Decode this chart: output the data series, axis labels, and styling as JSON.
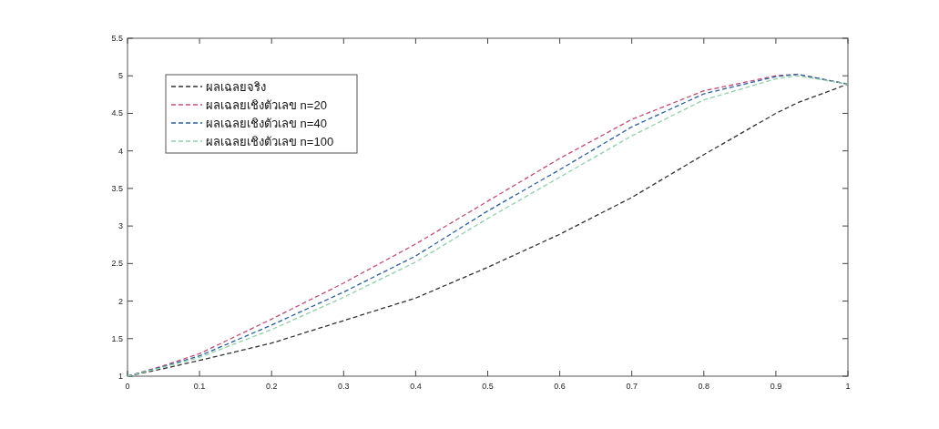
{
  "chart_data": {
    "type": "line",
    "x": [
      0,
      0.05,
      0.1,
      0.2,
      0.3,
      0.4,
      0.5,
      0.6,
      0.7,
      0.8,
      0.9,
      0.93,
      1
    ],
    "xlim": [
      0,
      1
    ],
    "xticks": [
      0,
      0.1,
      0.2,
      0.3,
      0.4,
      0.5,
      0.6,
      0.7,
      0.8,
      0.9,
      1
    ],
    "ylim": [
      1,
      5.5
    ],
    "yticks": [
      1,
      1.5,
      2,
      2.5,
      3,
      3.5,
      4,
      4.5,
      5,
      5.5
    ],
    "grid": false,
    "legend": "top left",
    "marker": "none",
    "line_style": "dashed",
    "series": [
      {
        "name": "ผลเฉลยจริง",
        "color": "#333333",
        "values": [
          1,
          1.1,
          1.21,
          1.44,
          1.74,
          2.04,
          2.45,
          2.89,
          3.38,
          3.95,
          4.5,
          4.64,
          4.89
        ]
      },
      {
        "name": "ผลเฉลยเชิงตัวเลข n=20",
        "color": "#c0507a",
        "values": [
          1,
          1.14,
          1.3,
          1.76,
          2.24,
          2.76,
          3.33,
          3.9,
          4.42,
          4.8,
          5.0,
          5.02,
          4.89
        ]
      },
      {
        "name": "ผลเฉลยเชิงตัวเลข n=40",
        "color": "#2a5fa0",
        "values": [
          1,
          1.13,
          1.27,
          1.68,
          2.12,
          2.6,
          3.2,
          3.75,
          4.32,
          4.76,
          4.99,
          5.02,
          4.89
        ]
      },
      {
        "name": "ผลเฉลยเชิงตัวเลข n=100",
        "color": "#8fd0a8",
        "values": [
          1,
          1.12,
          1.25,
          1.62,
          2.05,
          2.52,
          3.1,
          3.65,
          4.2,
          4.68,
          4.96,
          5.0,
          4.89
        ]
      }
    ]
  }
}
